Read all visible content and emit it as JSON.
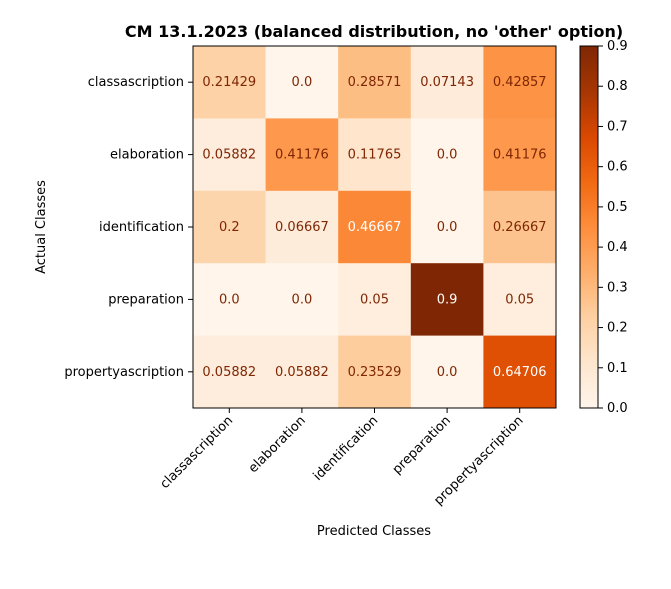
{
  "chart_data": {
    "type": "heatmap",
    "title": "CM 13.1.2023 (balanced distribution, no 'other' option)",
    "xlabel": "Predicted Classes",
    "ylabel": "Actual Classes",
    "x_categories": [
      "classascription",
      "elaboration",
      "identification",
      "preparation",
      "propertyascription"
    ],
    "y_categories": [
      "classascription",
      "elaboration",
      "identification",
      "preparation",
      "propertyascription"
    ],
    "values": [
      [
        0.21429,
        0.0,
        0.28571,
        0.07143,
        0.42857
      ],
      [
        0.05882,
        0.41176,
        0.11765,
        0.0,
        0.41176
      ],
      [
        0.2,
        0.06667,
        0.46667,
        0.0,
        0.26667
      ],
      [
        0.0,
        0.0,
        0.05,
        0.9,
        0.05
      ],
      [
        0.05882,
        0.05882,
        0.23529,
        0.0,
        0.64706
      ]
    ],
    "cell_labels": [
      [
        "0.21429",
        "0.0",
        "0.28571",
        "0.07143",
        "0.42857"
      ],
      [
        "0.05882",
        "0.41176",
        "0.11765",
        "0.0",
        "0.41176"
      ],
      [
        "0.2",
        "0.06667",
        "0.46667",
        "0.0",
        "0.26667"
      ],
      [
        "0.0",
        "0.0",
        "0.05",
        "0.9",
        "0.05"
      ],
      [
        "0.05882",
        "0.05882",
        "0.23529",
        "0.0",
        "0.64706"
      ]
    ],
    "colorbar": {
      "range": [
        0.0,
        0.9
      ],
      "ticks": [
        "0.0",
        "0.1",
        "0.2",
        "0.3",
        "0.4",
        "0.5",
        "0.6",
        "0.7",
        "0.8",
        "0.9"
      ]
    },
    "colormap": "Oranges",
    "colors": {
      "text_dark": "#7f2704",
      "text_light": "#ffffff",
      "axis": "#000000"
    }
  }
}
